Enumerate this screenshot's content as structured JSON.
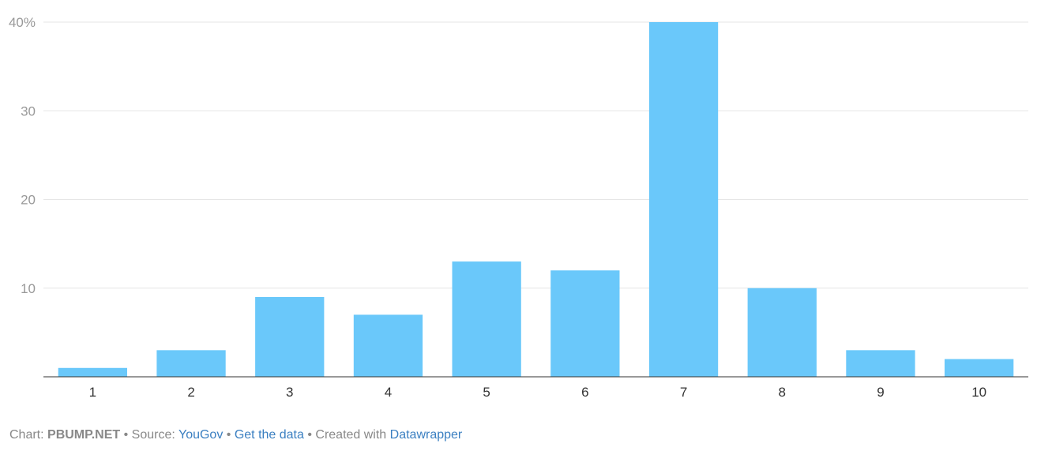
{
  "chart_data": {
    "type": "bar",
    "categories": [
      "1",
      "2",
      "3",
      "4",
      "5",
      "6",
      "7",
      "8",
      "9",
      "10"
    ],
    "values": [
      1,
      3,
      9,
      7,
      13,
      12,
      40,
      10,
      3,
      2
    ],
    "ylim": [
      0,
      40
    ],
    "yticks": [
      10,
      20,
      30,
      40
    ],
    "ytick_labels": [
      "10",
      "20",
      "30",
      "40%"
    ],
    "grid": true,
    "bar_color": "#6ac8fa",
    "title": "",
    "xlabel": "",
    "ylabel": ""
  },
  "footer": {
    "chart_prefix": "Chart: ",
    "chart_author": "PBUMP.NET",
    "sep1": " • Source: ",
    "source": "YouGov",
    "sep2": " • ",
    "get_data": "Get the data",
    "sep3": " • Created with ",
    "tool": "Datawrapper"
  }
}
